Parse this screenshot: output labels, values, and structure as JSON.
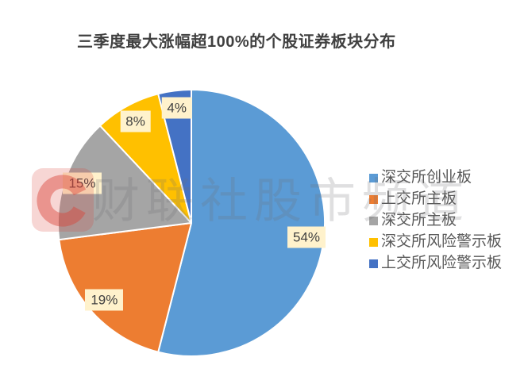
{
  "chart_data": {
    "type": "pie",
    "title": "三季度最大涨幅超100%的个股证券板块分布",
    "categories": [
      "深交所创业板",
      "上交所主板",
      "深交所主板",
      "深交所风险警示板",
      "上交所风险警示板"
    ],
    "values": [
      54,
      19,
      15,
      8,
      4
    ],
    "labels": [
      "54%",
      "19%",
      "15%",
      "8%",
      "4%"
    ],
    "colors": [
      "#5B9BD5",
      "#ED7D31",
      "#A5A5A5",
      "#FFC000",
      "#4472C4"
    ],
    "start_angle_deg": 0,
    "direction": "clockwise",
    "legend_position": "right",
    "label_bg": "#FFF2CC",
    "label_color": "#404040",
    "legend_text_color": "#595959",
    "title_color": "#404040",
    "slice_border_color": "#FFFFFF"
  },
  "watermark": {
    "logo_letter": "C",
    "logo_color": "#D9453A",
    "text": "财联社股市频道"
  }
}
